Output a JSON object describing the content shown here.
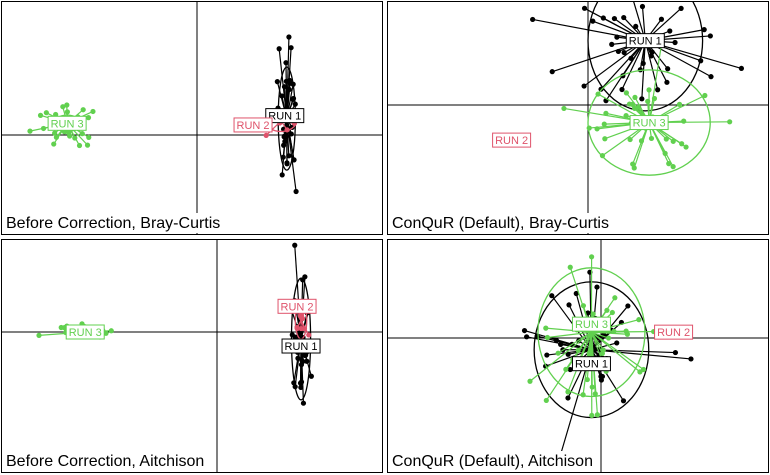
{
  "figure": {
    "grid": "2x2"
  },
  "chart_data": [
    {
      "type": "scatter",
      "title": "Before Correction, Bray-Curtis",
      "axes": "PCoA ordination with origin crosshair",
      "groups": [
        {
          "name": "RUN 1",
          "color": "#000000",
          "centroid": [
            0.47,
            0.14
          ],
          "spread": [
            0.05,
            0.55
          ],
          "ellipse": [
            0.045,
            0.44
          ],
          "n": 38
        },
        {
          "name": "RUN 2",
          "color": "#DF536B",
          "centroid": [
            0.44,
            0.12
          ],
          "spread": [
            0.12,
            0.1
          ],
          "ellipse": [
            0.08,
            0.09
          ],
          "n": 12
        },
        {
          "name": "RUN 3",
          "color": "#61D04F",
          "centroid": [
            -0.68,
            0.1
          ],
          "spread": [
            0.14,
            0.15
          ],
          "ellipse": [
            0.07,
            0.07
          ],
          "n": 38
        }
      ]
    },
    {
      "type": "scatter",
      "title": "ConQuR (Default), Bray-Curtis",
      "axes": "PCoA ordination with origin crosshair",
      "groups": [
        {
          "name": "RUN 1",
          "color": "#000000",
          "centroid": [
            0.3,
            0.55
          ],
          "spread": [
            0.35,
            0.45
          ],
          "ellipse": [
            0.3,
            0.6
          ],
          "n": 38
        },
        {
          "name": "RUN 2",
          "color": "#DF536B",
          "centroid": [
            -0.4,
            -0.3
          ],
          "spread": [
            0.0,
            0.0
          ],
          "ellipse": [
            0.0,
            0.0
          ],
          "n": 0
        },
        {
          "name": "RUN 3",
          "color": "#61D04F",
          "centroid": [
            0.32,
            -0.15
          ],
          "spread": [
            0.35,
            0.4
          ],
          "ellipse": [
            0.32,
            0.45
          ],
          "n": 40
        }
      ]
    },
    {
      "type": "scatter",
      "title": "Before Correction, Aitchison",
      "axes": "PCoA ordination with origin crosshair",
      "groups": [
        {
          "name": "RUN 1",
          "color": "#000000",
          "centroid": [
            0.44,
            -0.06
          ],
          "spread": [
            0.05,
            0.55
          ],
          "ellipse": [
            0.05,
            0.52
          ],
          "n": 40
        },
        {
          "name": "RUN 2",
          "color": "#DF536B",
          "centroid": [
            0.44,
            0.1
          ],
          "spread": [
            0.04,
            0.2
          ],
          "ellipse": [
            0.03,
            0.16
          ],
          "n": 14
        },
        {
          "name": "RUN 3",
          "color": "#61D04F",
          "centroid": [
            -0.69,
            0.0
          ],
          "spread": [
            0.15,
            0.05
          ],
          "ellipse": [
            0.06,
            0.03
          ],
          "n": 38
        }
      ]
    },
    {
      "type": "scatter",
      "title": "ConQuR (Default), Aitchison",
      "axes": "PCoA ordination with origin crosshair",
      "groups": [
        {
          "name": "RUN 1",
          "color": "#000000",
          "centroid": [
            -0.05,
            -0.1
          ],
          "spread": [
            0.35,
            0.55
          ],
          "ellipse": [
            0.3,
            0.58
          ],
          "n": 40
        },
        {
          "name": "RUN 2",
          "color": "#DF536B",
          "centroid": [
            0.38,
            0.05
          ],
          "spread": [
            0.0,
            0.0
          ],
          "ellipse": [
            0.0,
            0.0
          ],
          "n": 0
        },
        {
          "name": "RUN 3",
          "color": "#61D04F",
          "centroid": [
            -0.05,
            0.05
          ],
          "spread": [
            0.35,
            0.55
          ],
          "ellipse": [
            0.28,
            0.55
          ],
          "n": 40
        }
      ]
    }
  ]
}
